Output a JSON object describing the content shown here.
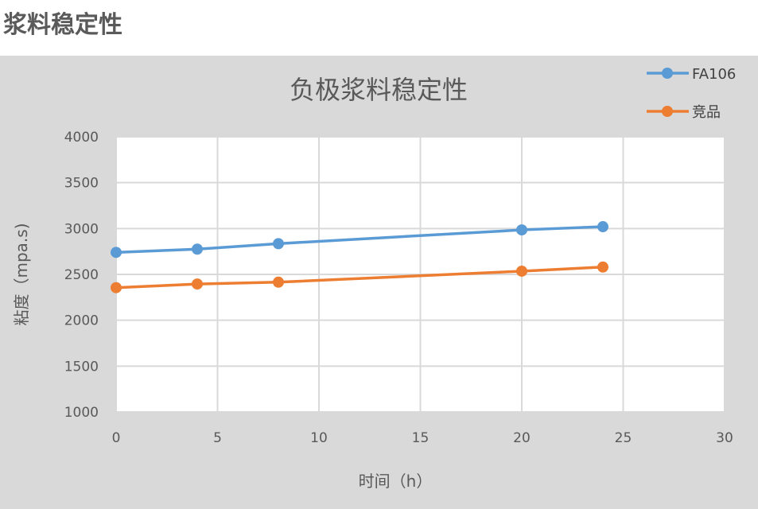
{
  "page": {
    "heading": "浆料稳定性"
  },
  "chart_data": {
    "type": "line",
    "title": "负极浆料稳定性",
    "xlabel": "时间（h）",
    "ylabel": "粘度（mpa.s)",
    "xlim": [
      0,
      30
    ],
    "ylim": [
      1000,
      4000
    ],
    "x_ticks": [
      0,
      5,
      10,
      15,
      20,
      25,
      30
    ],
    "y_ticks": [
      1000,
      1500,
      2000,
      2500,
      3000,
      3500,
      4000
    ],
    "grid": true,
    "legend_position": "top-right",
    "series": [
      {
        "name": "FA106",
        "color": "#5b9bd5",
        "points": [
          [
            0,
            2740
          ],
          [
            4,
            2775
          ],
          [
            8,
            2835
          ],
          [
            20,
            2985
          ],
          [
            24,
            3020
          ]
        ]
      },
      {
        "name": "竞品",
        "color": "#ed7d31",
        "points": [
          [
            0,
            2355
          ],
          [
            4,
            2395
          ],
          [
            8,
            2415
          ],
          [
            20,
            2535
          ],
          [
            24,
            2580
          ]
        ]
      }
    ]
  }
}
